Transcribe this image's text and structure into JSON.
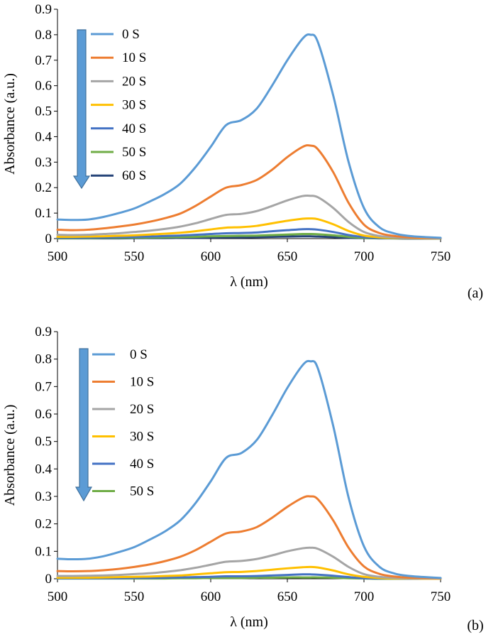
{
  "chart_data": [
    {
      "type": "line",
      "panel_label": "(a)",
      "xlabel": "λ (nm)",
      "ylabel": "Absorbance (a.u.)",
      "xlim": [
        500,
        750
      ],
      "ylim": [
        0,
        0.9
      ],
      "xticks": [
        500,
        550,
        600,
        650,
        700,
        750
      ],
      "yticks": [
        0,
        0.1,
        0.2,
        0.3,
        0.4,
        0.5,
        0.6,
        0.7,
        0.8,
        0.9
      ],
      "ytick_labels": [
        "0",
        "0.1",
        "0.2",
        "0.3",
        "0.4",
        "0.5",
        "0.6",
        "0.7",
        "0.8",
        "0.9"
      ],
      "x": [
        500,
        510,
        520,
        530,
        540,
        550,
        560,
        570,
        580,
        590,
        600,
        610,
        620,
        630,
        640,
        650,
        660,
        665,
        670,
        680,
        690,
        700,
        710,
        720,
        730,
        740,
        750
      ],
      "series": [
        {
          "name": "0 S",
          "color": "#5B9BD5",
          "values": [
            0.075,
            0.073,
            0.075,
            0.085,
            0.1,
            0.118,
            0.145,
            0.175,
            0.215,
            0.28,
            0.36,
            0.445,
            0.465,
            0.51,
            0.6,
            0.7,
            0.785,
            0.8,
            0.77,
            0.56,
            0.3,
            0.12,
            0.045,
            0.02,
            0.01,
            0.006,
            0.003
          ]
        },
        {
          "name": "10 S",
          "color": "#ED7D31",
          "values": [
            0.035,
            0.033,
            0.035,
            0.04,
            0.047,
            0.055,
            0.066,
            0.08,
            0.098,
            0.128,
            0.165,
            0.2,
            0.21,
            0.23,
            0.27,
            0.32,
            0.36,
            0.365,
            0.35,
            0.26,
            0.14,
            0.055,
            0.022,
            0.01,
            0.005,
            0.003,
            0.002
          ]
        },
        {
          "name": "20 S",
          "color": "#A5A5A5",
          "values": [
            0.015,
            0.014,
            0.015,
            0.018,
            0.021,
            0.026,
            0.031,
            0.038,
            0.047,
            0.06,
            0.077,
            0.093,
            0.097,
            0.108,
            0.128,
            0.15,
            0.167,
            0.168,
            0.162,
            0.12,
            0.065,
            0.026,
            0.01,
            0.005,
            0.003,
            0.002,
            0.001
          ]
        },
        {
          "name": "30 S",
          "color": "#FFC000",
          "values": [
            0.007,
            0.007,
            0.008,
            0.009,
            0.011,
            0.013,
            0.016,
            0.019,
            0.023,
            0.029,
            0.036,
            0.043,
            0.045,
            0.05,
            0.06,
            0.07,
            0.078,
            0.079,
            0.076,
            0.056,
            0.03,
            0.012,
            0.005,
            0.003,
            0.002,
            0.001,
            0.001
          ]
        },
        {
          "name": "40 S",
          "color": "#4472C4",
          "values": [
            0.004,
            0.004,
            0.004,
            0.005,
            0.006,
            0.007,
            0.008,
            0.01,
            0.012,
            0.015,
            0.018,
            0.021,
            0.022,
            0.024,
            0.029,
            0.033,
            0.037,
            0.037,
            0.035,
            0.026,
            0.014,
            0.006,
            0.003,
            0.002,
            0.001,
            0.001,
            0.001
          ]
        },
        {
          "name": "50 S",
          "color": "#70AD47",
          "values": [
            0.002,
            0.002,
            0.002,
            0.003,
            0.003,
            0.004,
            0.004,
            0.005,
            0.006,
            0.007,
            0.009,
            0.01,
            0.011,
            0.012,
            0.014,
            0.016,
            0.018,
            0.018,
            0.017,
            0.013,
            0.007,
            0.003,
            0.002,
            0.001,
            0.001,
            0.001,
            0.0
          ]
        },
        {
          "name": "60 S",
          "color": "#264478",
          "values": [
            0.001,
            0.001,
            0.001,
            0.001,
            0.001,
            0.002,
            0.002,
            0.002,
            0.003,
            0.003,
            0.004,
            0.005,
            0.005,
            0.006,
            0.007,
            0.008,
            0.009,
            0.009,
            0.008,
            0.006,
            0.003,
            0.002,
            0.001,
            0.001,
            0.0,
            0.0,
            0.0
          ]
        }
      ]
    },
    {
      "type": "line",
      "panel_label": "(b)",
      "xlabel": "λ (nm)",
      "ylabel": "Absorbance (a.u.)",
      "xlim": [
        500,
        750
      ],
      "ylim": [
        0,
        0.9
      ],
      "xticks": [
        500,
        550,
        600,
        650,
        700,
        750
      ],
      "yticks": [
        0,
        0.1,
        0.2,
        0.3,
        0.4,
        0.5,
        0.6,
        0.7,
        0.8,
        0.9
      ],
      "ytick_labels": [
        "0",
        "0.1",
        "0.2",
        "0.3",
        "0.4",
        "0.5",
        "0.6",
        "0.7",
        "0.8",
        "0.9"
      ],
      "x": [
        500,
        510,
        520,
        530,
        540,
        550,
        560,
        570,
        580,
        590,
        600,
        610,
        620,
        630,
        640,
        650,
        660,
        665,
        670,
        680,
        690,
        700,
        710,
        720,
        730,
        740,
        750
      ],
      "series": [
        {
          "name": "0 S",
          "color": "#5B9BD5",
          "values": [
            0.073,
            0.071,
            0.073,
            0.082,
            0.097,
            0.115,
            0.142,
            0.172,
            0.212,
            0.275,
            0.355,
            0.44,
            0.458,
            0.505,
            0.595,
            0.695,
            0.778,
            0.792,
            0.765,
            0.555,
            0.295,
            0.118,
            0.044,
            0.019,
            0.01,
            0.006,
            0.003
          ]
        },
        {
          "name": "10 S",
          "color": "#ED7D31",
          "values": [
            0.028,
            0.027,
            0.028,
            0.031,
            0.036,
            0.043,
            0.052,
            0.064,
            0.08,
            0.104,
            0.135,
            0.165,
            0.172,
            0.188,
            0.222,
            0.262,
            0.295,
            0.3,
            0.289,
            0.212,
            0.113,
            0.045,
            0.018,
            0.008,
            0.004,
            0.003,
            0.002
          ]
        },
        {
          "name": "20 S",
          "color": "#A5A5A5",
          "values": [
            0.01,
            0.01,
            0.011,
            0.012,
            0.014,
            0.017,
            0.02,
            0.025,
            0.031,
            0.04,
            0.051,
            0.062,
            0.065,
            0.072,
            0.085,
            0.1,
            0.111,
            0.113,
            0.109,
            0.08,
            0.043,
            0.017,
            0.007,
            0.003,
            0.002,
            0.001,
            0.001
          ]
        },
        {
          "name": "30 S",
          "color": "#FFC000",
          "values": [
            0.004,
            0.004,
            0.004,
            0.005,
            0.006,
            0.007,
            0.008,
            0.01,
            0.012,
            0.016,
            0.02,
            0.024,
            0.025,
            0.028,
            0.033,
            0.038,
            0.042,
            0.043,
            0.041,
            0.03,
            0.016,
            0.007,
            0.003,
            0.001,
            0.001,
            0.0,
            0.0
          ]
        },
        {
          "name": "40 S",
          "color": "#4472C4",
          "values": [
            0.002,
            0.002,
            0.002,
            0.002,
            0.002,
            0.003,
            0.003,
            0.004,
            0.005,
            0.006,
            0.007,
            0.009,
            0.009,
            0.01,
            0.012,
            0.014,
            0.016,
            0.016,
            0.015,
            0.011,
            0.006,
            0.002,
            0.001,
            0.001,
            0.0,
            0.0,
            0.0
          ]
        },
        {
          "name": "50 S",
          "color": "#70AD47",
          "values": [
            0.001,
            0.001,
            0.001,
            0.001,
            0.001,
            0.001,
            0.001,
            0.001,
            0.002,
            0.002,
            0.003,
            0.003,
            0.003,
            0.004,
            0.004,
            0.005,
            0.005,
            0.005,
            0.005,
            0.004,
            0.002,
            0.001,
            0.0,
            0.0,
            0.0,
            0.0,
            0.0
          ]
        }
      ]
    }
  ]
}
